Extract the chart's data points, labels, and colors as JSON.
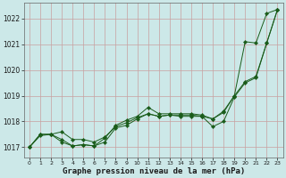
{
  "xlabel": "Graphe pression niveau de la mer (hPa)",
  "bg_color": "#cce8e8",
  "line_color": "#1a5c1a",
  "grid_color": "#c8a0a0",
  "ylim": [
    1016.6,
    1022.6
  ],
  "xlim": [
    -0.5,
    23.5
  ],
  "yticks": [
    1017,
    1018,
    1019,
    1020,
    1021,
    1022
  ],
  "xticks": [
    0,
    1,
    2,
    3,
    4,
    5,
    6,
    7,
    8,
    9,
    10,
    11,
    12,
    13,
    14,
    15,
    16,
    17,
    18,
    19,
    20,
    21,
    22,
    23
  ],
  "line1": [
    1017.0,
    1017.5,
    1017.5,
    1017.2,
    1017.05,
    1017.1,
    1017.05,
    1017.35,
    1017.85,
    1018.05,
    1018.2,
    1018.55,
    1018.3,
    1018.3,
    1018.3,
    1018.3,
    1018.25,
    1018.1,
    1018.4,
    1019.0,
    1021.1,
    1021.05,
    1022.2,
    1022.35
  ],
  "line2": [
    1017.0,
    1017.5,
    1017.5,
    1017.3,
    1017.05,
    1017.1,
    1017.05,
    1017.2,
    1017.75,
    1017.85,
    1018.1,
    1018.3,
    1018.2,
    1018.25,
    1018.25,
    1018.25,
    1018.2,
    1018.1,
    1018.35,
    1019.0,
    1019.55,
    1019.75,
    1021.05,
    1022.35
  ],
  "line3": [
    1017.0,
    1017.45,
    1017.5,
    1017.6,
    1017.3,
    1017.3,
    1017.2,
    1017.4,
    1017.8,
    1017.95,
    1018.15,
    1018.3,
    1018.2,
    1018.25,
    1018.2,
    1018.2,
    1018.2,
    1017.8,
    1018.0,
    1018.95,
    1019.5,
    1019.7,
    1021.05,
    1022.35
  ]
}
